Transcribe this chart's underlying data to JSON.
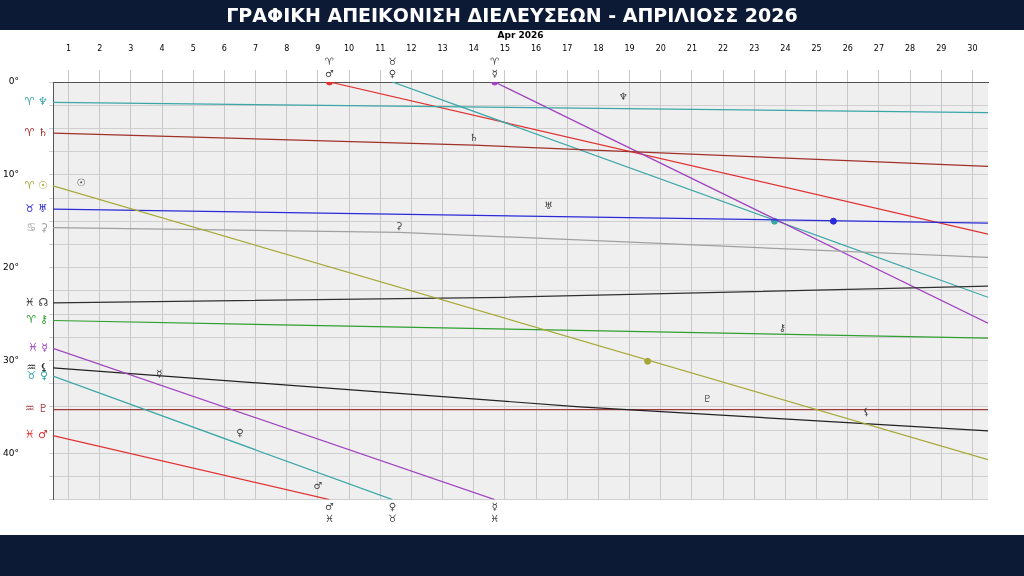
{
  "chart_data": {
    "type": "line",
    "title": "ΓΡΑΦΙΚΗ ΑΠΕΙΚΟΝΙΣΗ ΔΙΕΛΕΥΣΕΩΝ - ΑΠΡΙΛΙΟΣΣ 2026",
    "subtitle": "Apr 2026",
    "xlim": [
      0.5,
      30.5
    ],
    "xticks": [
      1,
      2,
      3,
      4,
      5,
      6,
      7,
      8,
      9,
      10,
      11,
      12,
      13,
      14,
      15,
      16,
      17,
      18,
      19,
      20,
      21,
      22,
      23,
      24,
      25,
      26,
      27,
      28,
      29,
      30
    ],
    "ylim": [
      45,
      0
    ],
    "yticks": [
      {
        "value": 0,
        "label": "0°"
      },
      {
        "value": 2.5,
        "label": null
      },
      {
        "value": 5,
        "label": null
      },
      {
        "value": 7.5,
        "label": null
      },
      {
        "value": 10,
        "label": "10°"
      },
      {
        "value": 12.5,
        "label": null
      },
      {
        "value": 15,
        "label": null
      },
      {
        "value": 17.5,
        "label": null
      },
      {
        "value": 20,
        "label": "20°"
      },
      {
        "value": 22.5,
        "label": null
      },
      {
        "value": 25,
        "label": null
      },
      {
        "value": 27.5,
        "label": null
      },
      {
        "value": 30,
        "label": "30°"
      },
      {
        "value": 32.5,
        "label": null
      },
      {
        "value": 35,
        "label": null
      },
      {
        "value": 37.5,
        "label": null
      },
      {
        "value": 40,
        "label": "40°"
      },
      {
        "value": 42.5,
        "label": null
      },
      {
        "value": 45,
        "label": null
      }
    ],
    "grid": true,
    "line_style": "solid",
    "series": [
      {
        "name": "♈ ♆",
        "color": "#3aa6a6",
        "x": [
          0.5,
          30.5
        ],
        "values": [
          2.2,
          3.3
        ]
      },
      {
        "name": "♈ ♄",
        "color": "#a0302a",
        "x": [
          0.5,
          14,
          30.5
        ],
        "values": [
          5.5,
          6.8,
          9.1
        ]
      },
      {
        "name": "♈ ☉",
        "color": "#a8a838",
        "x": [
          0.5,
          30.5
        ],
        "values": [
          11.2,
          40.7
        ]
      },
      {
        "name": "♉ ♅",
        "color": "#2a2ad8",
        "x": [
          0.5,
          30.5
        ],
        "values": [
          13.7,
          15.2
        ]
      },
      {
        "name": "♋ ⚳",
        "color": "#a0a0a0",
        "x": [
          0.5,
          11.6,
          30.5
        ],
        "values": [
          15.7,
          16.2,
          18.9
        ]
      },
      {
        "name": "♓ ☊",
        "color": "#303030",
        "x": [
          0.5,
          15,
          30.5
        ],
        "values": [
          23.8,
          23.2,
          22.0
        ]
      },
      {
        "name": "♈ ⚷",
        "color": "#2f9f2f",
        "x": [
          0.5,
          30.5
        ],
        "values": [
          25.7,
          27.6
        ]
      },
      {
        "name": "♓ ☿",
        "color": "#a040c0",
        "x": [
          0.5,
          14.67
        ],
        "values": [
          28.7,
          45
        ]
      },
      {
        "color": "#a040c0",
        "x": [
          14.67,
          30.5
        ],
        "values": [
          0,
          26.0
        ]
      },
      {
        "name": "♒ ⚸",
        "color": "#222222",
        "x": [
          0.5,
          17.4,
          30.5
        ],
        "values": [
          30.8,
          35.0,
          37.6
        ]
      },
      {
        "name": "♉ ♀",
        "color": "#3aa6a6",
        "x": [
          0.5,
          11.39
        ],
        "values": [
          31.7,
          45
        ]
      },
      {
        "color": "#3aa6a6",
        "x": [
          11.39,
          30.5
        ],
        "values": [
          0,
          23.2
        ]
      },
      {
        "name": "♒ ♇",
        "color": "#a03a3a",
        "x": [
          0.5,
          30.5
        ],
        "values": [
          35.3,
          35.3
        ]
      },
      {
        "name": "♓ ♂",
        "color": "#e03030",
        "x": [
          0.5,
          9.37
        ],
        "values": [
          38.1,
          45
        ]
      },
      {
        "color": "#e03030",
        "x": [
          9.37,
          30.5
        ],
        "values": [
          0,
          16.4
        ]
      },
      {
        "type": "scatter",
        "marker": "circle",
        "x": [
          9.37,
          14.67,
          23.65,
          25.54,
          19.58
        ],
        "values": [
          0,
          0,
          15.0,
          15.0,
          30.1
        ],
        "colors": [
          "#e03030",
          "#a040c0",
          "#3aa6a6",
          "#2a2ad8",
          "#a8a838"
        ]
      }
    ],
    "annotations": [
      {
        "text": "♈ ♂",
        "x": 9.37,
        "y": 0
      },
      {
        "text": "♉ ♀",
        "x": 11.39,
        "y": 0
      },
      {
        "text": "♈ ☿",
        "x": 14.67,
        "y": 0
      },
      {
        "text": "♂ ♓",
        "x": 9.37,
        "y": 45
      },
      {
        "text": "♀ ♉",
        "x": 11.39,
        "y": 45
      },
      {
        "text": "☿ ♓",
        "x": 14.67,
        "y": 45
      },
      {
        "text": "☉",
        "x": 1.4,
        "y": 11.6
      },
      {
        "text": "♆",
        "x": 18.8,
        "y": 2.3
      },
      {
        "text": "♄",
        "x": 14.0,
        "y": 6.7
      },
      {
        "text": "♅",
        "x": 16.4,
        "y": 14.0
      },
      {
        "text": "⚳",
        "x": 11.6,
        "y": 16.2
      },
      {
        "text": "⚷",
        "x": 23.9,
        "y": 27.2
      },
      {
        "text": "☿",
        "x": 3.9,
        "y": 32.2
      },
      {
        "text": "♀",
        "x": 6.5,
        "y": 38.5
      },
      {
        "text": "♂",
        "x": 9.0,
        "y": 44.2
      },
      {
        "text": "♇",
        "x": 21.5,
        "y": 34.8
      },
      {
        "text": "⚸",
        "x": 26.6,
        "y": 36.3
      }
    ]
  }
}
